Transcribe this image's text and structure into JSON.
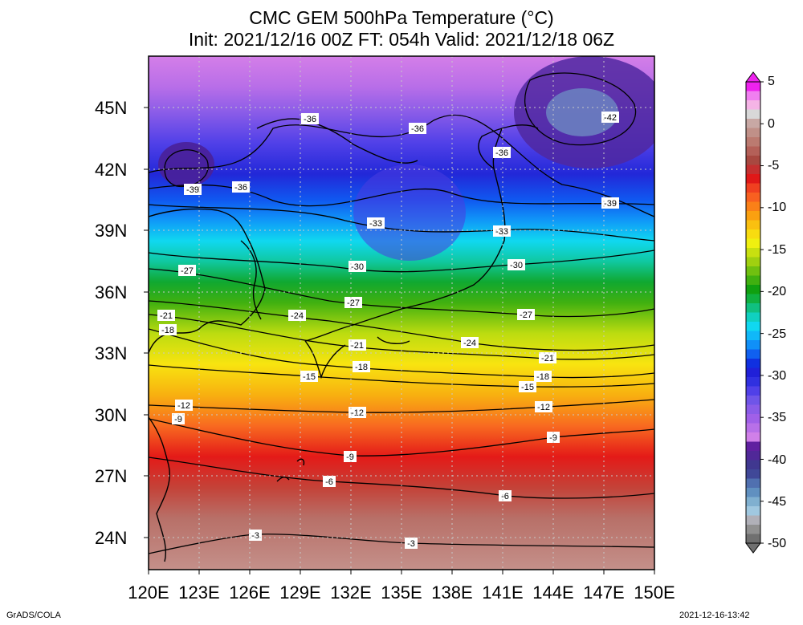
{
  "title": {
    "line1": "CMC GEM 500hPa Temperature (°C)",
    "line2": "Init: 2021/12/16 00Z  FT: 054h  Valid: 2021/12/18 06Z"
  },
  "axes": {
    "lat_labels": [
      "45N",
      "42N",
      "39N",
      "36N",
      "33N",
      "30N",
      "27N",
      "24N"
    ],
    "lon_labels": [
      "120E",
      "123E",
      "126E",
      "129E",
      "132E",
      "135E",
      "138E",
      "141E",
      "144E",
      "147E",
      "150E"
    ],
    "lat_range": [
      22.5,
      47.5
    ],
    "lon_range": [
      120,
      150
    ]
  },
  "colorbar": {
    "labels": [
      "5",
      "0",
      "-5",
      "-10",
      "-15",
      "-20",
      "-25",
      "-30",
      "-35",
      "-40",
      "-45",
      "-50"
    ],
    "colors": [
      "#ee22ee",
      "#f07ff0",
      "#f5b4e6",
      "#d8d8d8",
      "#c8a8a4",
      "#c09088",
      "#bb7a70",
      "#b46058",
      "#a84840",
      "#c43030",
      "#e01818",
      "#f04020",
      "#f86020",
      "#fa8018",
      "#faa010",
      "#fac010",
      "#f8dc10",
      "#f0f010",
      "#c8e010",
      "#a0d010",
      "#70c010",
      "#40b010",
      "#10a010",
      "#10b040",
      "#10c080",
      "#10d0c0",
      "#10d8f0",
      "#10b8f8",
      "#1090f8",
      "#1060f0",
      "#1030e0",
      "#2020d8",
      "#3030e0",
      "#5040e8",
      "#6f55e8",
      "#8a5ce8",
      "#a060e8",
      "#b870e8",
      "#d080e8",
      "#6020a0",
      "#502898",
      "#403890",
      "#404898",
      "#5070b0",
      "#6090c0",
      "#80b0d0",
      "#a0c8e0",
      "#b0b0b8",
      "#909090",
      "#707070"
    ]
  },
  "contour_labels": [
    "-42",
    "-39",
    "-36",
    "-33",
    "-30",
    "-27",
    "-24",
    "-21",
    "-18",
    "-15",
    "-12",
    "-9",
    "-6",
    "-3"
  ],
  "footer": {
    "left": "GrADS/COLA",
    "right": "2021-12-16-13:42"
  }
}
